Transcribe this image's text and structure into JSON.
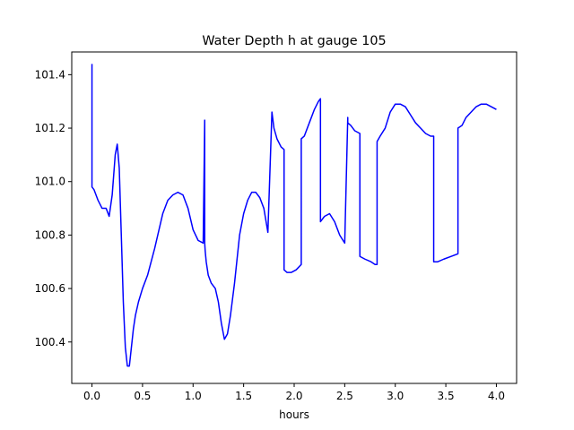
{
  "chart_data": {
    "type": "line",
    "title": "Water Depth h at gauge 105",
    "xlabel": "hours",
    "ylabel": "",
    "xlim": [
      -0.2,
      4.2
    ],
    "ylim": [
      100.245,
      101.485
    ],
    "xticks": [
      0.0,
      0.5,
      1.0,
      1.5,
      2.0,
      2.5,
      3.0,
      3.5,
      4.0
    ],
    "xtick_labels": [
      "0.0",
      "0.5",
      "1.0",
      "1.5",
      "2.0",
      "2.5",
      "3.0",
      "3.5",
      "4.0"
    ],
    "yticks": [
      100.4,
      100.6,
      100.8,
      101.0,
      101.2,
      101.4
    ],
    "ytick_labels": [
      "100.4",
      "100.6",
      "100.8",
      "101.0",
      "101.2",
      "101.4"
    ],
    "grid": false,
    "series": [
      {
        "color": "#0000ff",
        "x": [
          0.0,
          0.0,
          0.02,
          0.06,
          0.1,
          0.14,
          0.17,
          0.2,
          0.23,
          0.25,
          0.27,
          0.29,
          0.31,
          0.33,
          0.35,
          0.37,
          0.39,
          0.41,
          0.43,
          0.46,
          0.5,
          0.55,
          0.62,
          0.7,
          0.75,
          0.8,
          0.85,
          0.9,
          0.95,
          1.0,
          1.05,
          1.1,
          1.115,
          1.115,
          1.12,
          1.13,
          1.15,
          1.18,
          1.22,
          1.25,
          1.28,
          1.31,
          1.34,
          1.37,
          1.41,
          1.46,
          1.5,
          1.54,
          1.58,
          1.62,
          1.66,
          1.7,
          1.74,
          1.78,
          1.78,
          1.8,
          1.83,
          1.87,
          1.9,
          1.9,
          1.93,
          1.97,
          2.02,
          2.07,
          2.07,
          2.1,
          2.15,
          2.2,
          2.24,
          2.26,
          2.26,
          2.3,
          2.35,
          2.4,
          2.45,
          2.5,
          2.53,
          2.53,
          2.56,
          2.6,
          2.65,
          2.65,
          2.7,
          2.76,
          2.8,
          2.82,
          2.82,
          2.85,
          2.9,
          2.95,
          3.0,
          3.05,
          3.1,
          3.15,
          3.2,
          3.25,
          3.3,
          3.35,
          3.38,
          3.38,
          3.42,
          3.48,
          3.55,
          3.62,
          3.62,
          3.66,
          3.7,
          3.75,
          3.8,
          3.85,
          3.9,
          3.95,
          4.0
        ],
        "y": [
          101.44,
          100.98,
          100.97,
          100.93,
          100.9,
          100.9,
          100.87,
          100.95,
          101.1,
          101.14,
          101.05,
          100.8,
          100.55,
          100.38,
          100.31,
          100.31,
          100.38,
          100.45,
          100.5,
          100.55,
          100.6,
          100.65,
          100.75,
          100.88,
          100.93,
          100.95,
          100.96,
          100.95,
          100.9,
          100.82,
          100.78,
          100.77,
          101.23,
          100.77,
          100.74,
          100.7,
          100.65,
          100.62,
          100.6,
          100.55,
          100.47,
          100.41,
          100.43,
          100.5,
          100.62,
          100.8,
          100.88,
          100.93,
          100.96,
          100.96,
          100.94,
          100.9,
          100.81,
          101.26,
          101.26,
          101.2,
          101.16,
          101.13,
          101.12,
          100.67,
          100.66,
          100.66,
          100.67,
          100.69,
          101.16,
          101.17,
          101.22,
          101.27,
          101.3,
          101.31,
          100.85,
          100.87,
          100.88,
          100.85,
          100.8,
          100.77,
          101.24,
          101.22,
          101.21,
          101.19,
          101.18,
          100.72,
          100.71,
          100.7,
          100.69,
          100.69,
          101.15,
          101.17,
          101.2,
          101.26,
          101.29,
          101.29,
          101.28,
          101.25,
          101.22,
          101.2,
          101.18,
          101.17,
          101.17,
          100.7,
          100.7,
          100.71,
          100.72,
          100.73,
          101.2,
          101.21,
          101.24,
          101.26,
          101.28,
          101.29,
          101.29,
          101.28,
          101.27
        ]
      }
    ]
  }
}
